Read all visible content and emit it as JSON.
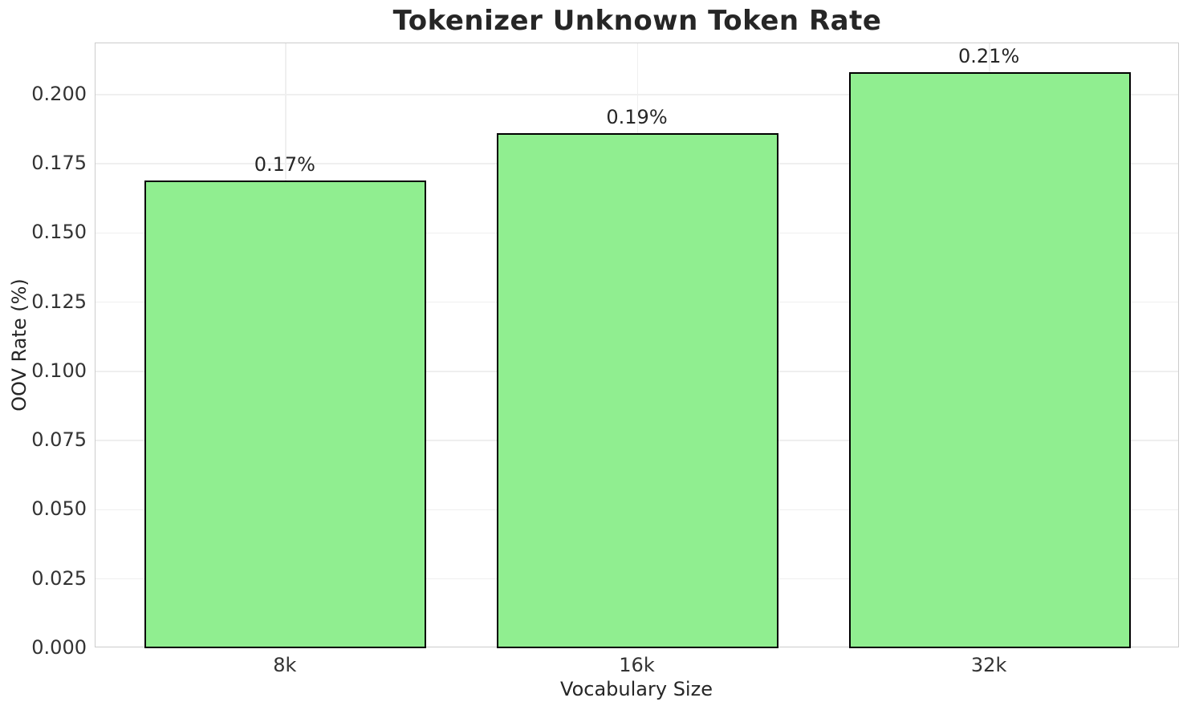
{
  "chart_data": {
    "type": "bar",
    "title": "Tokenizer Unknown Token Rate",
    "xlabel": "Vocabulary Size",
    "ylabel": "OOV Rate (%)",
    "categories": [
      "8k",
      "16k",
      "32k"
    ],
    "values": [
      0.169,
      0.186,
      0.208
    ],
    "bar_labels": [
      "0.17%",
      "0.19%",
      "0.21%"
    ],
    "ylim": [
      0,
      0.2185
    ],
    "ytick_values": [
      0.0,
      0.025,
      0.05,
      0.075,
      0.1,
      0.125,
      0.15,
      0.175,
      0.2
    ],
    "ytick_labels": [
      "0.000",
      "0.025",
      "0.050",
      "0.075",
      "0.100",
      "0.125",
      "0.150",
      "0.175",
      "0.200"
    ],
    "grid": true,
    "legend": "none",
    "colors": {
      "bar_fill": "#90ee90",
      "bar_edge": "#000000",
      "grid_line": "#efefef",
      "spine": "#cccccc",
      "text": "#262626",
      "background": "#ffffff"
    }
  }
}
